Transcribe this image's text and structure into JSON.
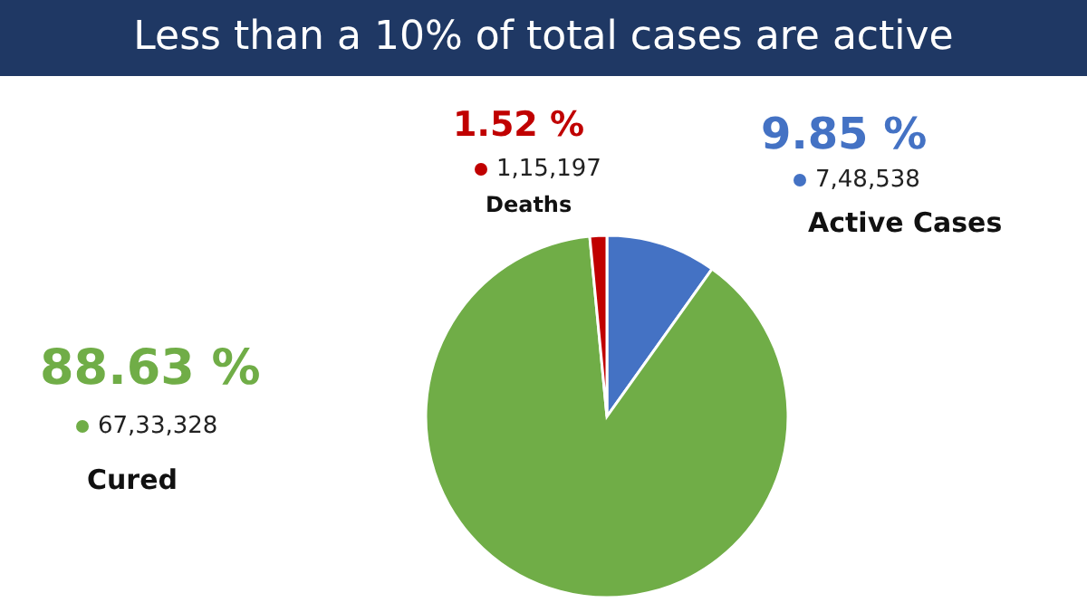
{
  "chart_data": {
    "type": "pie",
    "title": "Less than a 10% of total cases are active",
    "categories": [
      "Active Cases",
      "Cured",
      "Deaths"
    ],
    "values": [
      748538,
      6733328,
      115197
    ],
    "value_labels": [
      "7,48,538",
      "67,33,328",
      "1,15,197"
    ],
    "colors": [
      "#4472c4",
      "#70ad47",
      "#c00000"
    ],
    "annotations": [
      "9.85 %",
      "88.63 %",
      "1.52 %"
    ],
    "legend": "top"
  }
}
